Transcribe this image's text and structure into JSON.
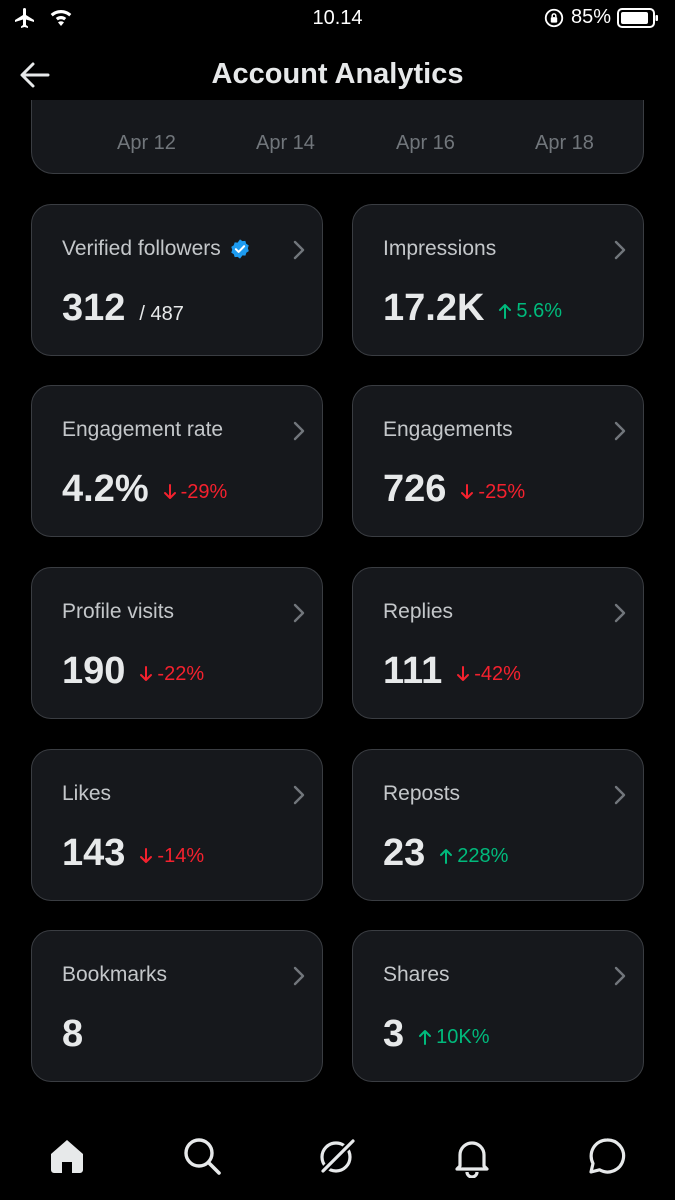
{
  "status": {
    "time": "10.14",
    "battery_pct": "85%"
  },
  "header": {
    "title": "Account Analytics"
  },
  "axis": {
    "labels": [
      "Apr 12",
      "Apr 14",
      "Apr 16",
      "Apr 18"
    ]
  },
  "metrics": [
    {
      "title": "Verified followers",
      "value": "312",
      "sub": "/ 487",
      "delta": "",
      "direction": ""
    },
    {
      "title": "Impressions",
      "value": "17.2K",
      "sub": "",
      "delta": "5.6%",
      "direction": "up"
    },
    {
      "title": "Engagement rate",
      "value": "4.2%",
      "sub": "",
      "delta": "-29%",
      "direction": "down"
    },
    {
      "title": "Engagements",
      "value": "726",
      "sub": "",
      "delta": "-25%",
      "direction": "down"
    },
    {
      "title": "Profile visits",
      "value": "190",
      "sub": "",
      "delta": "-22%",
      "direction": "down"
    },
    {
      "title": "Replies",
      "value": "111",
      "sub": "",
      "delta": "-42%",
      "direction": "down"
    },
    {
      "title": "Likes",
      "value": "143",
      "sub": "",
      "delta": "-14%",
      "direction": "down"
    },
    {
      "title": "Reposts",
      "value": "23",
      "sub": "",
      "delta": "228%",
      "direction": "up"
    },
    {
      "title": "Bookmarks",
      "value": "8",
      "sub": "",
      "delta": "",
      "direction": ""
    },
    {
      "title": "Shares",
      "value": "3",
      "sub": "",
      "delta": "10K%",
      "direction": "up"
    }
  ],
  "nav": [
    "home-icon",
    "search-icon",
    "grok-icon",
    "bell-icon",
    "messages-icon"
  ],
  "colors": {
    "up": "#00ba7c",
    "down": "#f4212e",
    "verified": "#1d9bf0",
    "card_bg": "#16181c"
  }
}
